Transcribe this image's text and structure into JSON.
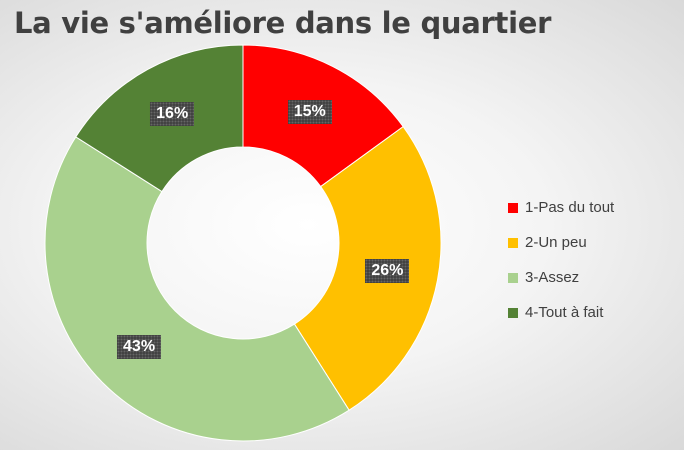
{
  "chart_data": {
    "type": "pie",
    "title": "La vie s'améliore dans le quartier",
    "categories": [
      "1-Pas du tout",
      "2-Un peu",
      "3-Assez",
      "4-Tout à fait"
    ],
    "values": [
      15,
      26,
      43,
      16
    ],
    "data_labels": [
      "15%",
      "26%",
      "43%",
      "16%"
    ],
    "colors": [
      "#ff0000",
      "#ffc000",
      "#a9d18e",
      "#548235"
    ],
    "legend_position": "right",
    "hole": "donut"
  }
}
